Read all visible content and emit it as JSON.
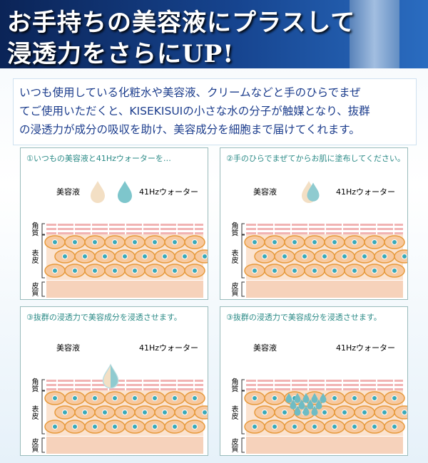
{
  "header": {
    "title_lines": [
      "お手持ちの美容液にプラスして",
      "浸透力をさらにUP!"
    ]
  },
  "intro": {
    "lines": [
      "いつも使用している化粧水や美容液、クリームなどと手のひらでまぜ",
      "てご使用いただくと、KISEKISUIの小さな水の分子が触媒となり、抜群",
      "の浸透力が成分の吸収を助け、美容成分を細胞まで届けてくれます。"
    ]
  },
  "labels": {
    "serum": "美容液",
    "water": "41Hzウォーター"
  },
  "layers": [
    "角質",
    "表皮",
    "皮質"
  ],
  "panels": [
    {
      "caption": "①いつもの美容液と41Hzウォーターを…"
    },
    {
      "caption": "②手のひらでまぜてからお肌に塗布してください。"
    },
    {
      "caption": "③抜群の浸透力で美容成分を浸透させます。"
    },
    {
      "caption": "③抜群の浸透力で美容成分を浸透させます。"
    }
  ]
}
